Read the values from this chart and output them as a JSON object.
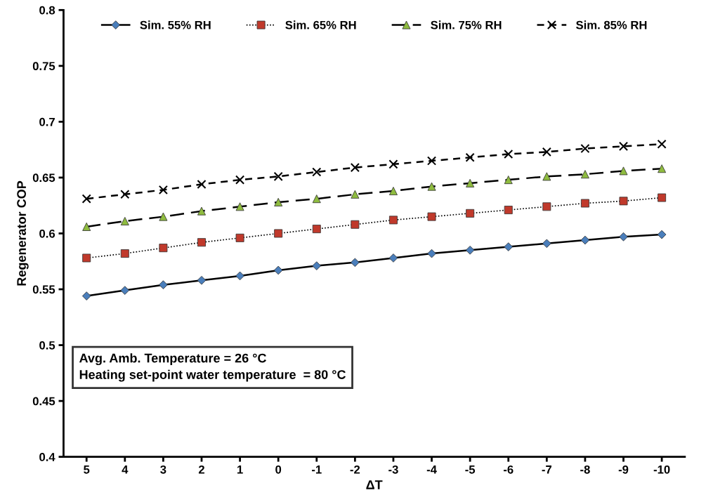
{
  "chart_data": {
    "type": "line",
    "xlabel": "ΔT",
    "ylabel": "Regenerator COP",
    "categories": [
      "5",
      "4",
      "3",
      "2",
      "1",
      "0",
      "-1",
      "-2",
      "-3",
      "-4",
      "-5",
      "-6",
      "-7",
      "-8",
      "-9",
      "-10"
    ],
    "series": [
      {
        "name": "Sim. 55% RH",
        "color": "#4a7ebb",
        "marker": "diamond",
        "line_style": "solid",
        "values": [
          0.544,
          0.549,
          0.554,
          0.558,
          0.562,
          0.567,
          0.571,
          0.574,
          0.578,
          0.582,
          0.585,
          0.588,
          0.591,
          0.594,
          0.597,
          0.599
        ]
      },
      {
        "name": "Sim. 65% RH",
        "color": "#c0392b",
        "marker": "square",
        "line_style": "dotted",
        "values": [
          0.578,
          0.582,
          0.587,
          0.592,
          0.596,
          0.6,
          0.604,
          0.608,
          0.612,
          0.615,
          0.618,
          0.621,
          0.624,
          0.627,
          0.629,
          0.632
        ]
      },
      {
        "name": "Sim. 75% RH",
        "color": "#8fbc3f",
        "marker": "triangle",
        "line_style": "dashed",
        "values": [
          0.606,
          0.611,
          0.615,
          0.62,
          0.624,
          0.628,
          0.631,
          0.635,
          0.638,
          0.642,
          0.645,
          0.648,
          0.651,
          0.653,
          0.656,
          0.658
        ]
      },
      {
        "name": "Sim. 85% RH",
        "color": "#000000",
        "marker": "cross",
        "line_style": "dashed",
        "values": [
          0.631,
          0.635,
          0.639,
          0.644,
          0.648,
          0.651,
          0.655,
          0.659,
          0.662,
          0.665,
          0.668,
          0.671,
          0.673,
          0.676,
          0.678,
          0.68
        ]
      }
    ],
    "ylim": [
      0.4,
      0.8
    ],
    "yticks": [
      0.4,
      0.45,
      0.5,
      0.55,
      0.6,
      0.65,
      0.7,
      0.75,
      0.8
    ],
    "grid": false,
    "legend": "top",
    "annotations": [
      "Avg. Amb. Temperature = 26 °C\nHeating set-point water temperature  = 80 °C"
    ]
  }
}
